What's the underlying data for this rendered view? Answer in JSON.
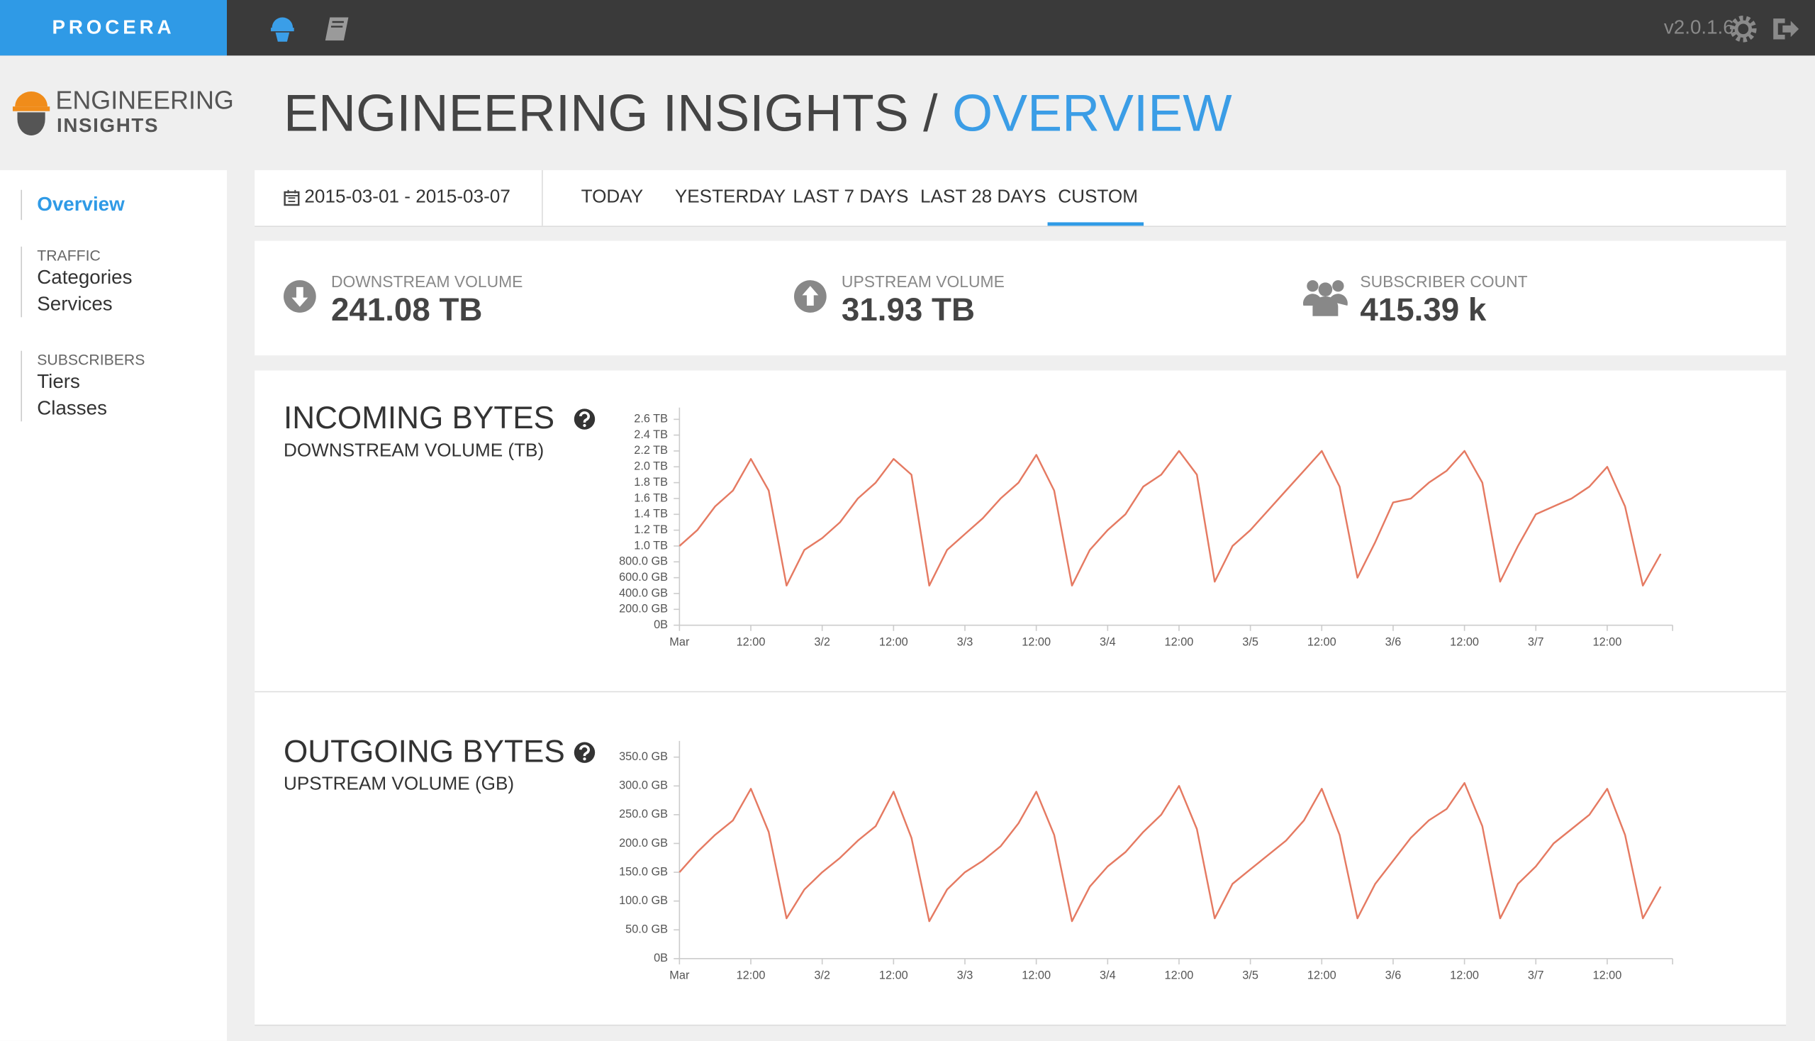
{
  "header": {
    "brand": "PROCERA",
    "version": "v2.0.1.6"
  },
  "sidebar": {
    "logo": [
      "ENGINEERING",
      "INSIGHTS"
    ],
    "active": "Overview",
    "sections": [
      {
        "label": "TRAFFIC",
        "items": [
          "Categories",
          "Services"
        ]
      },
      {
        "label": "SUBSCRIBERS",
        "items": [
          "Tiers",
          "Classes"
        ]
      }
    ]
  },
  "page": {
    "title": "ENGINEERING INSIGHTS /",
    "subtitle": "OVERVIEW"
  },
  "filter": {
    "date_range": "2015-03-01 - 2015-03-07",
    "tabs": [
      "TODAY",
      "YESTERDAY",
      "LAST 7 DAYS",
      "LAST 28 DAYS",
      "CUSTOM"
    ],
    "active_tab": 4
  },
  "stats": [
    {
      "label": "DOWNSTREAM VOLUME",
      "value": "241.08 TB"
    },
    {
      "label": "UPSTREAM VOLUME",
      "value": "31.93 TB"
    },
    {
      "label": "SUBSCRIBER COUNT",
      "value": "415.39 k"
    }
  ],
  "chart_data": [
    {
      "type": "line",
      "title": "INCOMING BYTES",
      "subtitle": "DOWNSTREAM VOLUME (TB)",
      "color": "#e57a62",
      "x": [
        0,
        3,
        6,
        9,
        12,
        15,
        18,
        21,
        24,
        27,
        30,
        33,
        36,
        39,
        42,
        45,
        48,
        51,
        54,
        57,
        60,
        63,
        66,
        69,
        72,
        75,
        78,
        81,
        84,
        87,
        90,
        93,
        96,
        99,
        102,
        105,
        108,
        111,
        114,
        117,
        120,
        123,
        126,
        129,
        132,
        135,
        138,
        141,
        144,
        147,
        150,
        153,
        156,
        159,
        162,
        165
      ],
      "values": [
        1.0,
        1.2,
        1.5,
        1.7,
        2.1,
        1.7,
        0.5,
        0.95,
        1.1,
        1.3,
        1.6,
        1.8,
        2.1,
        1.9,
        0.5,
        0.95,
        1.15,
        1.35,
        1.6,
        1.8,
        2.15,
        1.7,
        0.5,
        0.95,
        1.2,
        1.4,
        1.75,
        1.9,
        2.2,
        1.9,
        0.55,
        1.0,
        1.2,
        1.45,
        1.7,
        1.95,
        2.2,
        1.75,
        0.6,
        1.05,
        1.55,
        1.6,
        1.8,
        1.95,
        2.2,
        1.8,
        0.55,
        1.0,
        1.4,
        1.5,
        1.6,
        1.75,
        2.0,
        1.5,
        0.5,
        0.9
      ],
      "xlim": [
        0,
        167
      ],
      "xticks": [
        {
          "value": 0,
          "label": "Mar"
        },
        {
          "value": 12,
          "label": "12:00"
        },
        {
          "value": 24,
          "label": "3/2"
        },
        {
          "value": 36,
          "label": "12:00"
        },
        {
          "value": 48,
          "label": "3/3"
        },
        {
          "value": 60,
          "label": "12:00"
        },
        {
          "value": 72,
          "label": "3/4"
        },
        {
          "value": 84,
          "label": "12:00"
        },
        {
          "value": 96,
          "label": "3/5"
        },
        {
          "value": 108,
          "label": "12:00"
        },
        {
          "value": 120,
          "label": "3/6"
        },
        {
          "value": 132,
          "label": "12:00"
        },
        {
          "value": 144,
          "label": "3/7"
        },
        {
          "value": 156,
          "label": "12:00"
        }
      ],
      "ylim": [
        0,
        2.69
      ],
      "yticks": [
        {
          "value": 0,
          "label": "0B"
        },
        {
          "value": 0.2,
          "label": "200.0 GB"
        },
        {
          "value": 0.4,
          "label": "400.0 GB"
        },
        {
          "value": 0.6,
          "label": "600.0 GB"
        },
        {
          "value": 0.8,
          "label": "800.0 GB"
        },
        {
          "value": 1.0,
          "label": "1.0 TB"
        },
        {
          "value": 1.2,
          "label": "1.2 TB"
        },
        {
          "value": 1.4,
          "label": "1.4 TB"
        },
        {
          "value": 1.6,
          "label": "1.6 TB"
        },
        {
          "value": 1.8,
          "label": "1.8 TB"
        },
        {
          "value": 2.0,
          "label": "2.0 TB"
        },
        {
          "value": 2.2,
          "label": "2.2 TB"
        },
        {
          "value": 2.4,
          "label": "2.4 TB"
        },
        {
          "value": 2.6,
          "label": "2.6 TB"
        }
      ]
    },
    {
      "type": "line",
      "title": "OUTGOING BYTES",
      "subtitle": "UPSTREAM VOLUME (GB)",
      "color": "#e57a62",
      "x": [
        0,
        3,
        6,
        9,
        12,
        15,
        18,
        21,
        24,
        27,
        30,
        33,
        36,
        39,
        42,
        45,
        48,
        51,
        54,
        57,
        60,
        63,
        66,
        69,
        72,
        75,
        78,
        81,
        84,
        87,
        90,
        93,
        96,
        99,
        102,
        105,
        108,
        111,
        114,
        117,
        120,
        123,
        126,
        129,
        132,
        135,
        138,
        141,
        144,
        147,
        150,
        153,
        156,
        159,
        162,
        165
      ],
      "values": [
        150,
        185,
        215,
        240,
        295,
        220,
        70,
        120,
        150,
        175,
        205,
        230,
        290,
        210,
        65,
        120,
        150,
        170,
        195,
        235,
        290,
        215,
        65,
        125,
        160,
        185,
        220,
        250,
        300,
        225,
        70,
        130,
        155,
        180,
        205,
        240,
        295,
        215,
        70,
        130,
        170,
        210,
        240,
        260,
        305,
        230,
        70,
        130,
        160,
        200,
        225,
        250,
        295,
        215,
        70,
        125
      ],
      "xlim": [
        0,
        167
      ],
      "xticks": [
        {
          "value": 0,
          "label": "Mar"
        },
        {
          "value": 12,
          "label": "12:00"
        },
        {
          "value": 24,
          "label": "3/2"
        },
        {
          "value": 36,
          "label": "12:00"
        },
        {
          "value": 48,
          "label": "3/3"
        },
        {
          "value": 60,
          "label": "12:00"
        },
        {
          "value": 72,
          "label": "3/4"
        },
        {
          "value": 84,
          "label": "12:00"
        },
        {
          "value": 96,
          "label": "3/5"
        },
        {
          "value": 108,
          "label": "12:00"
        },
        {
          "value": 120,
          "label": "3/6"
        },
        {
          "value": 132,
          "label": "12:00"
        },
        {
          "value": 144,
          "label": "3/7"
        },
        {
          "value": 156,
          "label": "12:00"
        }
      ],
      "ylim": [
        0,
        370
      ],
      "yticks": [
        {
          "value": 0,
          "label": "0B"
        },
        {
          "value": 50,
          "label": "50.0 GB"
        },
        {
          "value": 100,
          "label": "100.0 GB"
        },
        {
          "value": 150,
          "label": "150.0 GB"
        },
        {
          "value": 200,
          "label": "200.0 GB"
        },
        {
          "value": 250,
          "label": "250.0 GB"
        },
        {
          "value": 300,
          "label": "300.0 GB"
        },
        {
          "value": 350,
          "label": "350.0 GB"
        }
      ]
    }
  ]
}
